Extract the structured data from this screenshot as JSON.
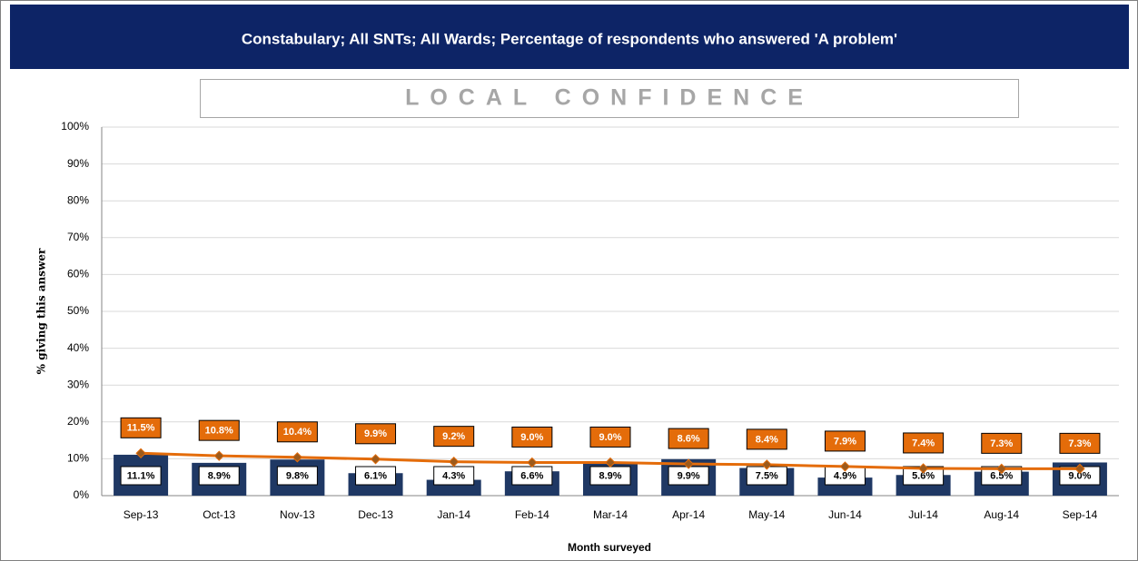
{
  "chart_data": {
    "type": "bar",
    "title": "Constabulary; All  SNTs; All Wards; Percentage of respondents who answered 'A problem'",
    "subtitle": "LOCAL CONFIDENCE",
    "y_label": "% giving this answer",
    "x_label": "Month surveyed",
    "categories": [
      "Sep-13",
      "Oct-13",
      "Nov-13",
      "Dec-13",
      "Jan-14",
      "Feb-14",
      "Mar-14",
      "Apr-14",
      "May-14",
      "Jun-14",
      "Jul-14",
      "Aug-14",
      "Sep-14"
    ],
    "series": [
      {
        "type": "bar",
        "color": "#1f3864",
        "values": [
          11.1,
          8.9,
          9.8,
          6.1,
          4.3,
          6.6,
          8.9,
          9.9,
          7.5,
          4.9,
          5.6,
          6.5,
          9.0
        ],
        "value_labels": [
          "11.1%",
          "8.9%",
          "9.8%",
          "6.1%",
          "4.3%",
          "6.6%",
          "8.9%",
          "9.9%",
          "7.5%",
          "4.9%",
          "5.6%",
          "6.5%",
          "9.0%"
        ]
      },
      {
        "type": "line",
        "color": "#e46c0a",
        "values": [
          11.5,
          10.8,
          10.4,
          9.9,
          9.2,
          9.0,
          9.0,
          8.6,
          8.4,
          7.9,
          7.4,
          7.3,
          7.3
        ],
        "value_labels": [
          "11.5%",
          "10.8%",
          "10.4%",
          "9.9%",
          "9.2%",
          "9.0%",
          "9.0%",
          "8.6%",
          "8.4%",
          "7.9%",
          "7.4%",
          "7.3%",
          "7.3%"
        ]
      }
    ],
    "ylim": [
      0,
      100
    ],
    "yticks": [
      {
        "value": 0,
        "label": "0%"
      },
      {
        "value": 10,
        "label": "10%"
      },
      {
        "value": 20,
        "label": "20%"
      },
      {
        "value": 30,
        "label": "30%"
      },
      {
        "value": 40,
        "label": "40%"
      },
      {
        "value": 50,
        "label": "50%"
      },
      {
        "value": 60,
        "label": "60%"
      },
      {
        "value": 70,
        "label": "70%"
      },
      {
        "value": 80,
        "label": "80%"
      },
      {
        "value": 90,
        "label": "90%"
      },
      {
        "value": 100,
        "label": "100%"
      }
    ],
    "grid": true
  }
}
